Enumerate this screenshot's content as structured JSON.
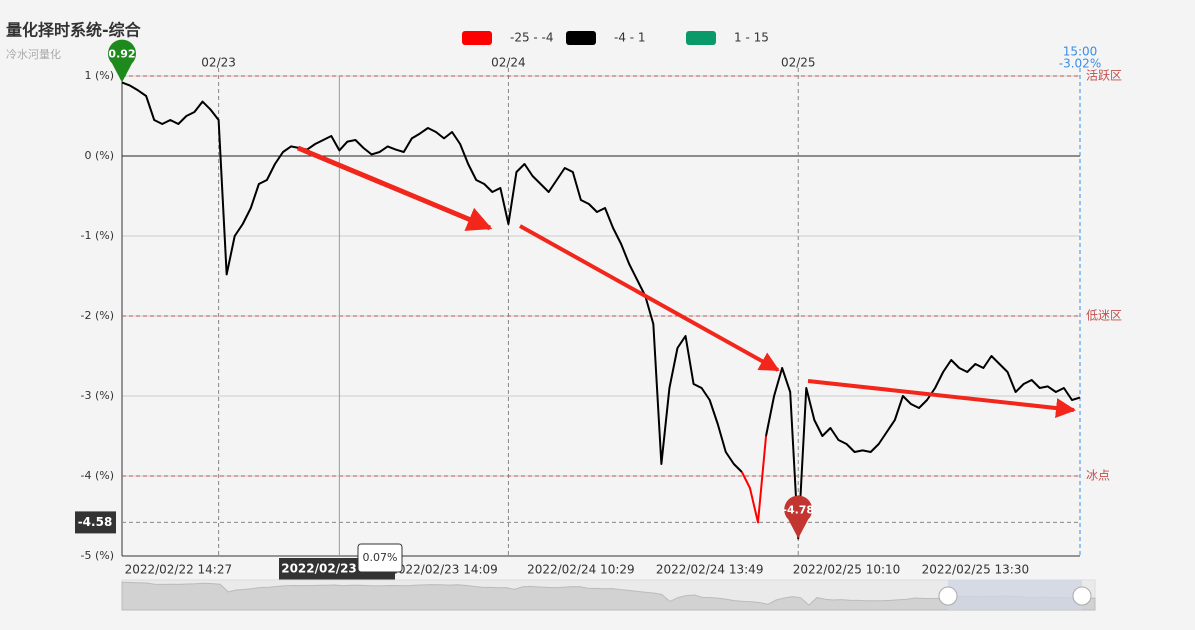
{
  "chart_data": {
    "type": "line",
    "title": "量化择时系统-综合",
    "subtitle": "冷水河量化",
    "ylim": [
      -5,
      1
    ],
    "yticks": [
      {
        "value": 1,
        "label": "1 (%)"
      },
      {
        "value": 0,
        "label": "0 (%)"
      },
      {
        "value": -1,
        "label": "-1 (%)"
      },
      {
        "value": -2,
        "label": "-2 (%)"
      },
      {
        "value": -3,
        "label": "-3 (%)"
      },
      {
        "value": -4,
        "label": "-4 (%)"
      },
      {
        "value": -5,
        "label": "-5 (%)"
      }
    ],
    "grid": true,
    "pieces": [
      {
        "min": -25,
        "max": -4,
        "label": "-25 - -4",
        "color": "#ff0000"
      },
      {
        "min": -4,
        "max": 1,
        "label": "-4 - 1",
        "color": "#000000"
      },
      {
        "min": 1,
        "max": 15,
        "label": "1 - 15",
        "color": "#0a9a6a"
      }
    ],
    "categories": [
      null,
      null,
      null,
      null,
      null,
      null,
      null,
      "2022/02/22 14:27",
      null,
      null,
      null,
      null,
      null,
      null,
      null,
      null,
      null,
      null,
      null,
      null,
      null,
      null,
      null,
      null,
      null,
      null,
      null,
      null,
      null,
      null,
      null,
      null,
      null,
      null,
      null,
      null,
      null,
      null,
      null,
      null,
      "2022/02/23 14:09",
      null,
      null,
      null,
      null,
      null,
      null,
      null,
      null,
      null,
      null,
      null,
      null,
      null,
      null,
      null,
      null,
      "2022/02/24 10:29",
      null,
      null,
      null,
      null,
      null,
      null,
      null,
      null,
      null,
      null,
      null,
      null,
      null,
      null,
      null,
      "2022/02/24 13:49",
      null,
      null,
      null,
      null,
      null,
      null,
      null,
      null,
      null,
      null,
      null,
      null,
      null,
      null,
      null,
      null,
      "2022/02/25 10:10",
      null,
      null,
      null,
      null,
      null,
      null,
      null,
      null,
      null,
      null,
      null,
      null,
      null,
      null,
      null,
      "2022/02/25 13:30",
      null,
      null,
      null,
      null,
      null,
      null,
      null,
      null,
      null,
      null,
      null,
      null,
      null
    ],
    "top_categories": [
      null,
      null,
      null,
      null,
      null,
      null,
      null,
      null,
      null,
      null,
      null,
      null,
      "02/23",
      null,
      null,
      null,
      null,
      null,
      null,
      null,
      null,
      null,
      null,
      null,
      null,
      null,
      null,
      null,
      null,
      null,
      null,
      null,
      null,
      null,
      null,
      null,
      null,
      null,
      null,
      null,
      null,
      null,
      null,
      null,
      null,
      null,
      null,
      null,
      "02/24",
      null,
      null,
      null,
      null,
      null,
      null,
      null,
      null,
      null,
      null,
      null,
      null,
      null,
      null,
      null,
      null,
      null,
      null,
      null,
      null,
      null,
      null,
      null,
      null,
      null,
      null,
      null,
      null,
      null,
      null,
      null,
      null,
      null,
      null,
      null,
      "02/25",
      null,
      null,
      null,
      null,
      null,
      null,
      null,
      null,
      null,
      null,
      null,
      null,
      null,
      null,
      null,
      null,
      null,
      null,
      null,
      null,
      null,
      null,
      null,
      null,
      null,
      null,
      null,
      null,
      null,
      null,
      null,
      null,
      null,
      null,
      "15:00"
    ],
    "values": [
      0.92,
      0.88,
      0.82,
      0.75,
      0.45,
      0.4,
      0.45,
      0.4,
      0.5,
      0.55,
      0.68,
      0.58,
      0.45,
      -1.48,
      -1.0,
      -0.85,
      -0.65,
      -0.35,
      -0.3,
      -0.1,
      0.05,
      0.12,
      0.1,
      0.08,
      0.15,
      0.2,
      0.25,
      0.07,
      0.18,
      0.2,
      0.1,
      0.02,
      0.05,
      0.12,
      0.08,
      0.05,
      0.22,
      0.28,
      0.35,
      0.3,
      0.22,
      0.3,
      0.15,
      -0.1,
      -0.3,
      -0.35,
      -0.45,
      -0.4,
      -0.85,
      -0.2,
      -0.1,
      -0.25,
      -0.35,
      -0.45,
      -0.3,
      -0.15,
      -0.2,
      -0.55,
      -0.6,
      -0.7,
      -0.65,
      -0.9,
      -1.1,
      -1.35,
      -1.55,
      -1.75,
      -2.1,
      -3.85,
      -2.9,
      -2.4,
      -2.25,
      -2.85,
      -2.9,
      -3.05,
      -3.35,
      -3.7,
      -3.85,
      -3.95,
      -4.15,
      -4.58,
      -3.5,
      -3.0,
      -2.65,
      -2.95,
      -4.78,
      -2.9,
      -3.3,
      -3.5,
      -3.4,
      -3.55,
      -3.6,
      -3.7,
      -3.68,
      -3.7,
      -3.6,
      -3.45,
      -3.3,
      -3.0,
      -3.1,
      -3.15,
      -3.05,
      -2.9,
      -2.7,
      -2.55,
      -2.65,
      -2.7,
      -2.6,
      -2.65,
      -2.5,
      -2.6,
      -2.7,
      -2.95,
      -2.85,
      -2.8,
      -2.9,
      -2.88,
      -2.95,
      -2.9,
      -3.05,
      -3.02
    ],
    "last_value_label": "-3.02%",
    "mark_lines": [
      {
        "value": 1,
        "label": "活跃区"
      },
      {
        "value": -2,
        "label": "低迷区"
      },
      {
        "value": -4,
        "label": "冰点"
      }
    ],
    "mark_line_color": "#c0504d",
    "mark_points": [
      {
        "value": 0.92,
        "label": "0.92",
        "color": "#1e8a1e"
      },
      {
        "value": -4.78,
        "label": "-4.78",
        "color": "#c23531"
      }
    ],
    "pointer": {
      "y_value": -4.58,
      "y_label": "-4.58",
      "x_label": "2022/02/23",
      "value": 0.07,
      "value_label": "0.07%"
    }
  }
}
